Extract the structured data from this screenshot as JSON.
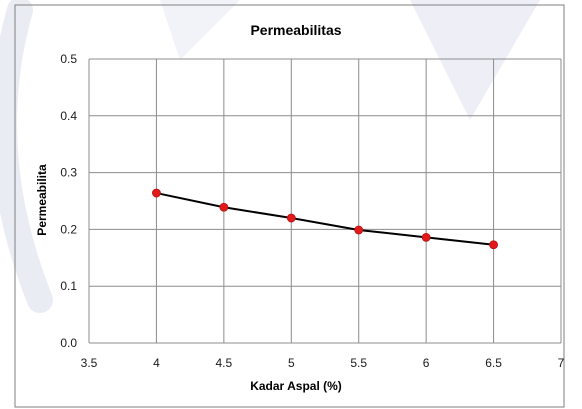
{
  "colors": {
    "background": "#ffffff",
    "watermark": "#d9dcea",
    "border": "#7f7f7f",
    "grid": "#8c8c8c",
    "line": "#000000",
    "marker": "#e31a1c"
  },
  "chart_data": {
    "type": "line",
    "title": "Permeabilitas",
    "xlabel": "Kadar Aspal (%)",
    "ylabel": "Permeabilita",
    "x": [
      4,
      4.5,
      5,
      5.5,
      6,
      6.5
    ],
    "series": [
      {
        "values": [
          0.264,
          0.239,
          0.22,
          0.199,
          0.186,
          0.173
        ]
      }
    ],
    "xlim": [
      3.5,
      7
    ],
    "ylim": [
      0,
      0.5
    ],
    "xticks": [
      3.5,
      4,
      4.5,
      5,
      5.5,
      6,
      6.5,
      7
    ],
    "yticks": [
      0,
      0.1,
      0.2,
      0.3,
      0.4,
      0.5
    ],
    "xtick_labels": [
      "3.5",
      "4",
      "4.5",
      "5",
      "5.5",
      "6",
      "6.5",
      "7"
    ],
    "ytick_labels": [
      "0.0",
      "0.1",
      "0.2",
      "0.3",
      "0.4",
      "0.5"
    ],
    "grid": true,
    "legend": "none"
  }
}
